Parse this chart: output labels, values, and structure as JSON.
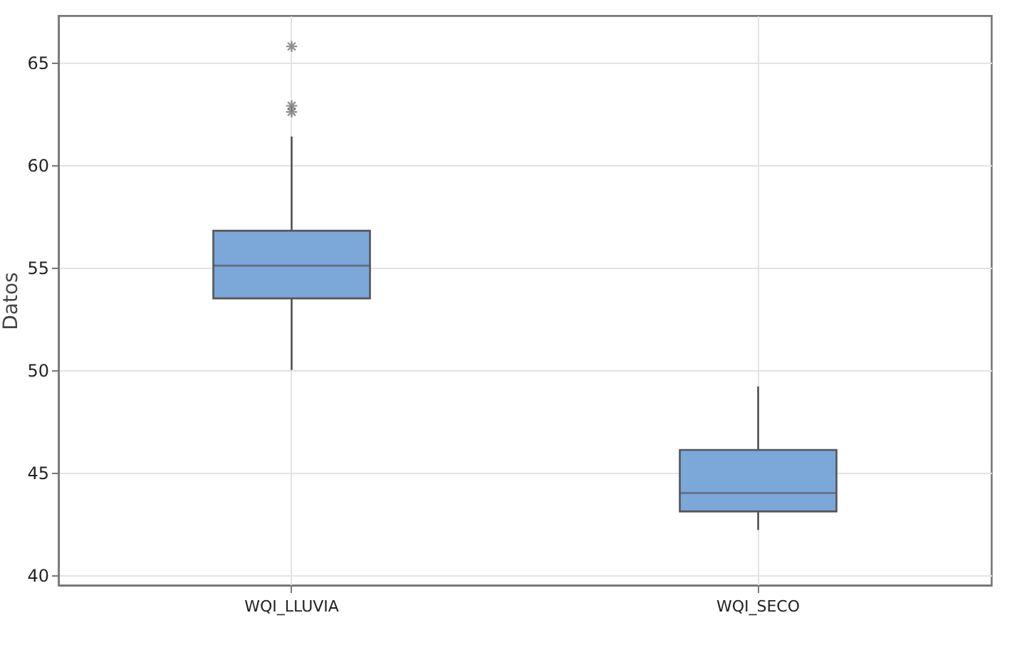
{
  "chart_data": {
    "type": "box",
    "categories": [
      "WQI_LLUVIA",
      "WQI_SECO"
    ],
    "ylabel": "Datos",
    "ylim": [
      39.5,
      67.3
    ],
    "yticks": [
      40,
      45,
      50,
      55,
      60,
      65
    ],
    "grid": true,
    "series": [
      {
        "color": "#7ba7d9",
        "boxes": [
          {
            "low": 50.0,
            "q1": 53.5,
            "median": 55.1,
            "q3": 56.8,
            "high": 61.4,
            "outliers": [
              65.8,
              62.9,
              62.6
            ]
          },
          {
            "low": 42.2,
            "q1": 43.1,
            "median": 44.0,
            "q3": 46.1,
            "high": 49.2
          }
        ]
      }
    ]
  }
}
